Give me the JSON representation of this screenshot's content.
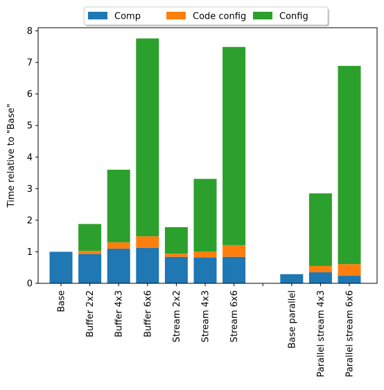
{
  "chart_data": {
    "type": "bar",
    "stacked": true,
    "title": "",
    "xlabel": "",
    "ylabel": "Time relative to \"Base\"",
    "ylim": [
      0,
      8.1
    ],
    "yticks": [
      0,
      1,
      2,
      3,
      4,
      5,
      6,
      7,
      8
    ],
    "grid": false,
    "legend_position": "top-center-outside",
    "categories": [
      "Base",
      "Buffer 2x2",
      "Buffer 4x3",
      "Buffer 6x6",
      "Stream 2x2",
      "Stream 4x3",
      "Stream 6x6",
      "",
      "Base parallel",
      "Parallel stream 4x3",
      "Parallel stream 6x6"
    ],
    "series": [
      {
        "name": "Comp",
        "color": "#1f77b4",
        "values": [
          1.0,
          0.93,
          1.1,
          1.12,
          0.84,
          0.82,
          0.84,
          0,
          0.29,
          0.35,
          0.24
        ]
      },
      {
        "name": "Code config",
        "color": "#ff7f0e",
        "values": [
          0.0,
          0.1,
          0.2,
          0.37,
          0.1,
          0.19,
          0.37,
          0,
          0.0,
          0.2,
          0.37
        ]
      },
      {
        "name": "Config",
        "color": "#2ca02c",
        "values": [
          0.0,
          0.85,
          2.3,
          6.27,
          0.84,
          2.3,
          6.28,
          0,
          0.0,
          2.3,
          6.28
        ]
      }
    ]
  }
}
